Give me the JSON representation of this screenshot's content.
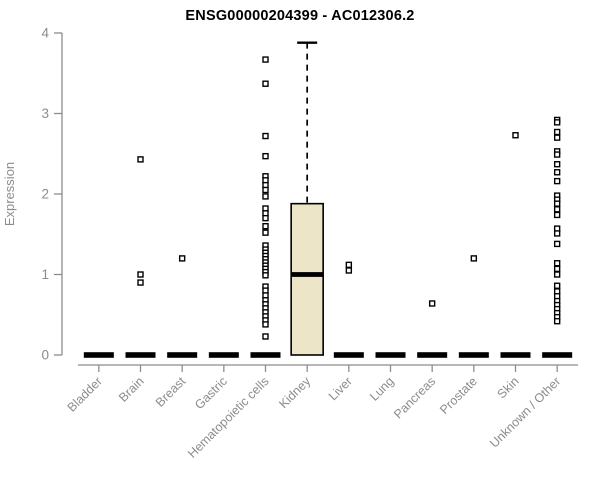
{
  "chart_data": {
    "type": "box",
    "title": "ENSG00000204399 - AC012306.2",
    "xlabel": "",
    "ylabel": "Expression",
    "ylim": [
      0,
      4
    ],
    "yticks": [
      0,
      1,
      2,
      3,
      4
    ],
    "grid": false,
    "legend": false,
    "categories": [
      "Bladder",
      "Brain",
      "Breast",
      "Gastric",
      "Hematopoietic cells",
      "Kidney",
      "Liver",
      "Lung",
      "Pancreas",
      "Prostate",
      "Skin",
      "Unknown / Other"
    ],
    "boxes": [
      {
        "category": "Bladder",
        "q1": 0,
        "median": 0,
        "q3": 0,
        "whisker_low": 0,
        "whisker_high": 0,
        "outliers": []
      },
      {
        "category": "Brain",
        "q1": 0,
        "median": 0,
        "q3": 0,
        "whisker_low": 0,
        "whisker_high": 0,
        "outliers": [
          2.43,
          1.0,
          0.9
        ]
      },
      {
        "category": "Breast",
        "q1": 0,
        "median": 0,
        "q3": 0,
        "whisker_low": 0,
        "whisker_high": 0,
        "outliers": [
          1.2
        ]
      },
      {
        "category": "Gastric",
        "q1": 0,
        "median": 0,
        "q3": 0,
        "whisker_low": 0,
        "whisker_high": 0,
        "outliers": []
      },
      {
        "category": "Hematopoietic cells",
        "q1": 0,
        "median": 0,
        "q3": 0,
        "whisker_low": 0,
        "whisker_high": 0,
        "outliers": [
          3.67,
          3.37,
          2.72,
          2.47,
          2.22,
          2.17,
          2.11,
          2.05,
          1.97,
          1.82,
          1.76,
          1.7,
          1.6,
          1.52,
          1.36,
          1.31,
          1.27,
          1.23,
          1.19,
          1.15,
          1.11,
          1.07,
          1.03,
          0.99,
          0.85,
          0.8,
          0.74,
          0.68,
          0.63,
          0.58,
          0.53,
          0.48,
          0.43,
          0.38,
          0.23
        ]
      },
      {
        "category": "Kidney",
        "q1": 0,
        "median": 1.0,
        "q3": 1.88,
        "whisker_low": 0,
        "whisker_high": 3.88,
        "outliers": []
      },
      {
        "category": "Liver",
        "q1": 0,
        "median": 0,
        "q3": 0,
        "whisker_low": 0,
        "whisker_high": 0,
        "outliers": [
          1.12,
          1.05
        ]
      },
      {
        "category": "Lung",
        "q1": 0,
        "median": 0,
        "q3": 0,
        "whisker_low": 0,
        "whisker_high": 0,
        "outliers": []
      },
      {
        "category": "Pancreas",
        "q1": 0,
        "median": 0,
        "q3": 0,
        "whisker_low": 0,
        "whisker_high": 0,
        "outliers": [
          0.64
        ]
      },
      {
        "category": "Prostate",
        "q1": 0,
        "median": 0,
        "q3": 0,
        "whisker_low": 0,
        "whisker_high": 0,
        "outliers": [
          1.2
        ]
      },
      {
        "category": "Skin",
        "q1": 0,
        "median": 0,
        "q3": 0,
        "whisker_low": 0,
        "whisker_high": 0,
        "outliers": [
          2.73
        ]
      },
      {
        "category": "Unknown / Other",
        "q1": 0,
        "median": 0,
        "q3": 0,
        "whisker_low": 0,
        "whisker_high": 0,
        "outliers": [
          2.92,
          2.89,
          2.77,
          2.7,
          2.53,
          2.49,
          2.37,
          2.27,
          2.16,
          1.98,
          1.93,
          1.88,
          1.81,
          1.74,
          1.57,
          1.51,
          1.38,
          1.14,
          1.07,
          1.0,
          0.86,
          0.79,
          0.73,
          0.67,
          0.62,
          0.57,
          0.52,
          0.47,
          0.42
        ]
      }
    ],
    "colors": {
      "box_fill": "#ece5c8",
      "box_stroke": "#000000",
      "median_color": "#000000",
      "outlier_stroke": "#000000",
      "outlier_fill": "#ffffff",
      "axis_color": "#8c8c8c",
      "title_color": "#000000",
      "background": "#ffffff"
    }
  }
}
